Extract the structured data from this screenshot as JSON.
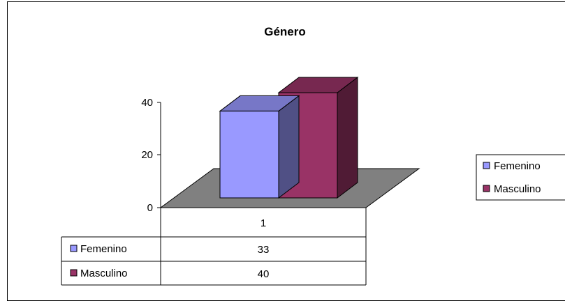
{
  "chart_data": {
    "type": "bar",
    "title": "Género",
    "categories": [
      "1"
    ],
    "series": [
      {
        "name": "Femenino",
        "values": [
          33
        ],
        "color": "#9999FF"
      },
      {
        "name": "Masculino",
        "values": [
          40
        ],
        "color": "#993366"
      }
    ],
    "y_ticks": [
      "0",
      "20",
      "40"
    ],
    "ylim": [
      0,
      40
    ],
    "xlabel": "",
    "ylabel": "",
    "legend_position": "right",
    "grid": false,
    "data_table": true,
    "floor_color": "#808080"
  }
}
